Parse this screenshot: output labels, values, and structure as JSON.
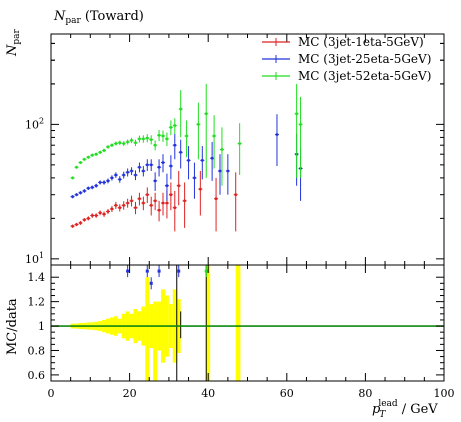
{
  "title": "N",
  "title_sub": "par",
  "title_suffix": "(Toward)",
  "chart_data": [
    {
      "type": "scatter",
      "panel": "main",
      "ylabel": "N",
      "ylabel_sub": "par",
      "yscale": "log",
      "xlim": [
        0,
        100
      ],
      "ylim": [
        9,
        470
      ],
      "yticks_labeled": [
        {
          "value": 10,
          "label": "10",
          "sup": "1"
        },
        {
          "value": 100,
          "label": "10",
          "sup": "2"
        }
      ],
      "legend_position": "top-right",
      "series": [
        {
          "name": "MC (3jet-1eta-5GeV)",
          "color": "#dd2222",
          "points": [
            [
              5.5,
              17.5,
              0.5
            ],
            [
              6.5,
              18,
              0.5
            ],
            [
              7.5,
              18.5,
              0.6
            ],
            [
              8.5,
              19.5,
              0.6
            ],
            [
              9.5,
              20,
              0.7
            ],
            [
              10.5,
              21,
              0.8
            ],
            [
              11.5,
              21,
              0.8
            ],
            [
              12.5,
              22,
              0.9
            ],
            [
              13.5,
              21.5,
              1
            ],
            [
              14.5,
              22.5,
              1
            ],
            [
              15.5,
              23.5,
              1.2
            ],
            [
              16.5,
              25,
              1.5
            ],
            [
              17.5,
              24,
              1.5
            ],
            [
              18.5,
              25,
              1.8
            ],
            [
              19.5,
              26,
              2
            ],
            [
              20.5,
              27,
              2.5
            ],
            [
              21.5,
              24,
              2.5
            ],
            [
              22.5,
              28,
              3
            ],
            [
              23.5,
              26,
              3
            ],
            [
              24.5,
              30,
              4
            ],
            [
              25.5,
              25,
              4
            ],
            [
              26.5,
              27,
              4
            ],
            [
              27.5,
              23,
              4
            ],
            [
              28.5,
              26,
              5
            ],
            [
              29.5,
              26,
              6
            ],
            [
              30.5,
              30,
              7
            ],
            [
              31.5,
              24,
              8
            ],
            [
              32.5,
              35,
              10
            ],
            [
              34,
              27,
              10
            ],
            [
              38,
              33,
              12
            ],
            [
              42,
              28,
              12
            ],
            [
              47,
              30,
              14
            ]
          ]
        },
        {
          "name": "MC (3jet-25eta-5GeV)",
          "color": "#2233dd",
          "points": [
            [
              5.5,
              29,
              0.8
            ],
            [
              6.5,
              30,
              0.8
            ],
            [
              7.5,
              31,
              0.9
            ],
            [
              8.5,
              32,
              1
            ],
            [
              9.5,
              33.5,
              1
            ],
            [
              10.5,
              34,
              1.1
            ],
            [
              11.5,
              35,
              1.2
            ],
            [
              12.5,
              37,
              1.3
            ],
            [
              13.5,
              37,
              1.4
            ],
            [
              14.5,
              38,
              1.6
            ],
            [
              15.5,
              40,
              1.8
            ],
            [
              16.5,
              42,
              2
            ],
            [
              17.5,
              39,
              2.2
            ],
            [
              18.5,
              42,
              2.5
            ],
            [
              19.5,
              44,
              3
            ],
            [
              20.5,
              45,
              3
            ],
            [
              21.5,
              42,
              3.5
            ],
            [
              22.5,
              48,
              4
            ],
            [
              23.5,
              45,
              4
            ],
            [
              24.5,
              50,
              5
            ],
            [
              25.5,
              50,
              5
            ],
            [
              26.5,
              38,
              6
            ],
            [
              27.5,
              48,
              7
            ],
            [
              28.5,
              52,
              8
            ],
            [
              29.5,
              35,
              8
            ],
            [
              30.5,
              49,
              10
            ],
            [
              31.5,
              70,
              15
            ],
            [
              33,
              62,
              15
            ],
            [
              35,
              54,
              15
            ],
            [
              36.5,
              40,
              12
            ],
            [
              38.5,
              54,
              15
            ],
            [
              41,
              56,
              18
            ],
            [
              43,
              45,
              15
            ],
            [
              45,
              45,
              15
            ],
            [
              57.5,
              84,
              35
            ],
            [
              62.5,
              60,
              25
            ],
            [
              63.5,
              47,
              20
            ]
          ]
        },
        {
          "name": "MC (3jet-52eta-5GeV)",
          "color": "#22dd22",
          "points": [
            [
              5.5,
              40,
              1
            ],
            [
              6.5,
              48,
              1.2
            ],
            [
              7.5,
              52,
              1.3
            ],
            [
              8.5,
              55,
              1.4
            ],
            [
              9.5,
              57,
              1.5
            ],
            [
              10.5,
              59,
              1.6
            ],
            [
              11.5,
              60,
              1.7
            ],
            [
              12.5,
              62,
              1.8
            ],
            [
              13.5,
              64,
              1.9
            ],
            [
              14.5,
              68,
              2
            ],
            [
              15.5,
              70,
              2.2
            ],
            [
              16.5,
              72,
              2.5
            ],
            [
              17.5,
              73,
              2.7
            ],
            [
              18.5,
              72,
              3
            ],
            [
              19.5,
              74,
              3.2
            ],
            [
              20.5,
              76,
              3.5
            ],
            [
              21.5,
              73,
              4
            ],
            [
              22.5,
              78,
              4.5
            ],
            [
              23.5,
              78,
              5
            ],
            [
              24.5,
              79,
              5.5
            ],
            [
              25.5,
              77,
              6
            ],
            [
              26.5,
              70,
              6
            ],
            [
              27.5,
              83,
              8
            ],
            [
              28.5,
              82,
              8
            ],
            [
              29.5,
              78,
              9
            ],
            [
              30.5,
              95,
              12
            ],
            [
              31.5,
              98,
              13
            ],
            [
              33,
              130,
              50
            ],
            [
              34.5,
              82,
              25
            ],
            [
              37.5,
              100,
              45
            ],
            [
              39.5,
              120,
              80
            ],
            [
              41.5,
              82,
              35
            ],
            [
              43.5,
              65,
              30
            ],
            [
              48,
              72,
              30
            ],
            [
              62.5,
              120,
              80
            ],
            [
              63.5,
              100,
              60
            ]
          ]
        }
      ]
    },
    {
      "type": "bar",
      "panel": "ratio",
      "ylabel": "MC/data",
      "xlabel": "p",
      "xlabel_sub": "T",
      "xlabel_sup": "lead",
      "xlabel_unit": "/ GeV",
      "xlim": [
        0,
        100
      ],
      "ylim": [
        0.55,
        1.5
      ],
      "yticks": [
        0.6,
        0.8,
        1.0,
        1.2,
        1.4
      ],
      "xticks": [
        0,
        20,
        40,
        60,
        80,
        100
      ],
      "reference_line": 1.0,
      "reference_color": "#118811",
      "band_color": "#ffff00",
      "band_edge_color": "#000000",
      "band": [
        [
          5,
          6,
          0.98,
          1.02
        ],
        [
          6,
          7,
          0.98,
          1.02
        ],
        [
          7,
          8,
          0.975,
          1.025
        ],
        [
          8,
          9,
          0.975,
          1.025
        ],
        [
          9,
          10,
          0.97,
          1.03
        ],
        [
          10,
          11,
          0.97,
          1.03
        ],
        [
          11,
          12,
          0.965,
          1.035
        ],
        [
          12,
          13,
          0.96,
          1.04
        ],
        [
          13,
          14,
          0.95,
          1.05
        ],
        [
          14,
          15,
          0.94,
          1.06
        ],
        [
          15,
          16,
          0.93,
          1.07
        ],
        [
          16,
          17,
          0.92,
          1.08
        ],
        [
          17,
          18,
          0.94,
          1.06
        ],
        [
          18,
          19,
          0.9,
          1.1
        ],
        [
          19,
          20,
          0.88,
          1.12
        ],
        [
          20,
          21,
          0.9,
          1.1
        ],
        [
          21,
          22,
          0.86,
          1.14
        ],
        [
          22,
          23,
          0.88,
          1.12
        ],
        [
          23,
          24,
          0.84,
          1.16
        ],
        [
          24,
          25,
          0.55,
          1.4
        ],
        [
          25,
          26,
          0.82,
          1.18
        ],
        [
          26,
          27,
          0.55,
          1.2
        ],
        [
          27,
          28,
          0.8,
          1.2
        ],
        [
          28,
          29,
          0.7,
          1.3
        ],
        [
          29,
          30,
          0.75,
          1.25
        ],
        [
          30,
          31,
          0.82,
          1.18
        ],
        [
          31,
          32,
          0.7,
          1.3
        ],
        [
          32,
          33,
          0.78,
          1.22
        ],
        [
          39.5,
          40.5,
          0.55,
          1.5
        ],
        [
          47,
          48.2,
          0.55,
          1.5
        ]
      ],
      "points": [
        {
          "x": 19.5,
          "y": 1.45,
          "color": "#2233dd"
        },
        {
          "x": 24.5,
          "y": 1.45,
          "color": "#2233dd"
        },
        {
          "x": 27.5,
          "y": 1.45,
          "color": "#2233dd"
        },
        {
          "x": 32.5,
          "y": 1.45,
          "color": "#2233dd"
        },
        {
          "x": 25.5,
          "y": 1.35,
          "color": "#2233dd"
        },
        {
          "x": 39.5,
          "y": 1.45,
          "color": "#22dd22"
        }
      ]
    }
  ]
}
